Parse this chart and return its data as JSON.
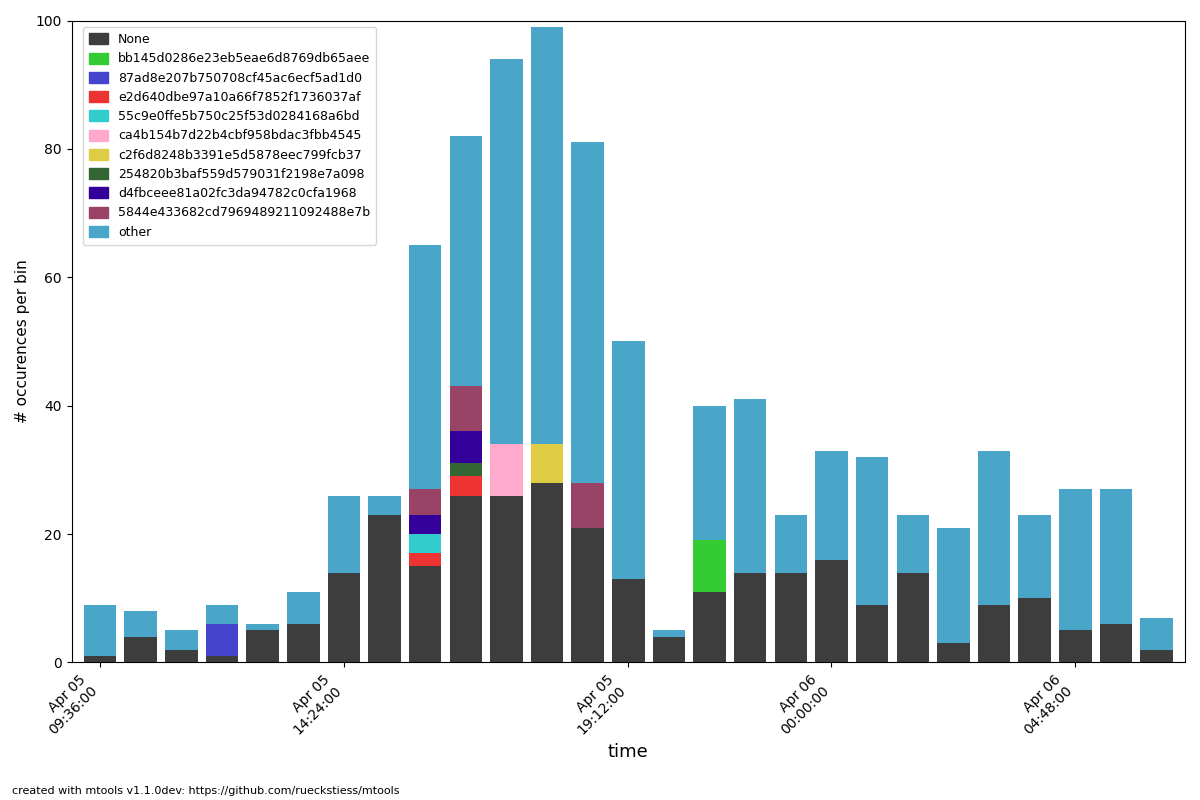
{
  "xlabel": "time",
  "ylabel": "# occurences per bin",
  "ylim": [
    0,
    100
  ],
  "yticks": [
    0,
    20,
    40,
    60,
    80,
    100
  ],
  "footnote": "created with mtools v1.1.0dev: https://github.com/rueckstiess/mtools",
  "legend_labels": [
    "None",
    "bb145d0286e23eb5eae6d8769db65aee",
    "87ad8e207b750708cf45ac6ecf5ad1d0",
    "e2d640dbe97a10a66f7852f1736037af",
    "55c9e0ffe5b750c25f53d0284168a6bd",
    "ca4b154b7d22b4cbf958bdac3fbb4545",
    "c2f6d8248b3391e5d5878eec799fcb37",
    "254820b3baf559d579031f2198e7a098",
    "d4fbceee81a02fc3da94782c0cfa1968",
    "5844e433682cd7969489211092488e7b",
    "other"
  ],
  "legend_colors": [
    "#3d3d3d",
    "#33cc33",
    "#4444cc",
    "#ee3333",
    "#33cccc",
    "#ffaacc",
    "#ddcc44",
    "#336633",
    "#330099",
    "#994466",
    "#4aA6C8"
  ],
  "bar_width": 0.8,
  "xtick_labels": [
    "Apr 05\n09:36:00",
    "Apr 05\n14:24:00",
    "Apr 05\n19:12:00",
    "Apr 06\n00:00:00",
    "Apr 06\n04:48:00"
  ],
  "bars": [
    {
      "x": 0,
      "none": 1,
      "bb": 0,
      "ad": 0,
      "e2": 0,
      "c5": 0,
      "ca": 0,
      "c2": 0,
      "d2": 0,
      "d4": 0,
      "s8": 0,
      "other": 8
    },
    {
      "x": 1,
      "none": 4,
      "bb": 0,
      "ad": 0,
      "e2": 0,
      "c5": 0,
      "ca": 0,
      "c2": 0,
      "d2": 0,
      "d4": 0,
      "s8": 0,
      "other": 4
    },
    {
      "x": 2,
      "none": 2,
      "bb": 0,
      "ad": 0,
      "e2": 0,
      "c5": 0,
      "ca": 0,
      "c2": 0,
      "d2": 0,
      "d4": 0,
      "s8": 0,
      "other": 3
    },
    {
      "x": 3,
      "none": 1,
      "bb": 0,
      "ad": 5,
      "e2": 0,
      "c5": 0,
      "ca": 0,
      "c2": 0,
      "d2": 0,
      "d4": 0,
      "s8": 0,
      "other": 3
    },
    {
      "x": 4,
      "none": 5,
      "bb": 0,
      "ad": 0,
      "e2": 0,
      "c5": 0,
      "ca": 0,
      "c2": 0,
      "d2": 0,
      "d4": 0,
      "s8": 0,
      "other": 1
    },
    {
      "x": 5,
      "none": 6,
      "bb": 0,
      "ad": 0,
      "e2": 0,
      "c5": 0,
      "ca": 0,
      "c2": 0,
      "d2": 0,
      "d4": 0,
      "s8": 0,
      "other": 5
    },
    {
      "x": 6,
      "none": 14,
      "bb": 0,
      "ad": 0,
      "e2": 0,
      "c5": 0,
      "ca": 0,
      "c2": 0,
      "d2": 0,
      "d4": 0,
      "s8": 0,
      "other": 12
    },
    {
      "x": 7,
      "none": 23,
      "bb": 0,
      "ad": 0,
      "e2": 0,
      "c5": 0,
      "ca": 0,
      "c2": 0,
      "d2": 0,
      "d4": 0,
      "s8": 0,
      "other": 3
    },
    {
      "x": 8,
      "none": 15,
      "bb": 0,
      "ad": 0,
      "e2": 2,
      "c5": 3,
      "ca": 0,
      "c2": 0,
      "d2": 0,
      "d4": 3,
      "s8": 4,
      "other": 38
    },
    {
      "x": 9,
      "none": 26,
      "bb": 0,
      "ad": 0,
      "e2": 3,
      "c5": 0,
      "ca": 0,
      "c2": 0,
      "d2": 2,
      "d4": 5,
      "s8": 7,
      "other": 39
    },
    {
      "x": 10,
      "none": 26,
      "bb": 0,
      "ad": 0,
      "e2": 0,
      "c5": 0,
      "ca": 8,
      "c2": 0,
      "d2": 0,
      "d4": 0,
      "s8": 0,
      "other": 60
    },
    {
      "x": 11,
      "none": 28,
      "bb": 0,
      "ad": 0,
      "e2": 0,
      "c5": 0,
      "ca": 0,
      "c2": 6,
      "d2": 0,
      "d4": 0,
      "s8": 0,
      "other": 65
    },
    {
      "x": 12,
      "none": 21,
      "bb": 0,
      "ad": 0,
      "e2": 0,
      "c5": 0,
      "ca": 0,
      "c2": 0,
      "d2": 0,
      "d4": 0,
      "s8": 7,
      "other": 53
    },
    {
      "x": 13,
      "none": 13,
      "bb": 0,
      "ad": 0,
      "e2": 0,
      "c5": 0,
      "ca": 0,
      "c2": 0,
      "d2": 0,
      "d4": 0,
      "s8": 0,
      "other": 37
    },
    {
      "x": 14,
      "none": 4,
      "bb": 0,
      "ad": 0,
      "e2": 0,
      "c5": 0,
      "ca": 0,
      "c2": 0,
      "d2": 0,
      "d4": 0,
      "s8": 0,
      "other": 1
    },
    {
      "x": 15,
      "none": 11,
      "bb": 8,
      "ad": 0,
      "e2": 0,
      "c5": 0,
      "ca": 0,
      "c2": 0,
      "d2": 0,
      "d4": 0,
      "s8": 0,
      "other": 21
    },
    {
      "x": 16,
      "none": 14,
      "bb": 0,
      "ad": 0,
      "e2": 0,
      "c5": 0,
      "ca": 0,
      "c2": 0,
      "d2": 0,
      "d4": 0,
      "s8": 0,
      "other": 27
    },
    {
      "x": 17,
      "none": 14,
      "bb": 0,
      "ad": 0,
      "e2": 0,
      "c5": 0,
      "ca": 0,
      "c2": 0,
      "d2": 0,
      "d4": 0,
      "s8": 0,
      "other": 9
    },
    {
      "x": 18,
      "none": 16,
      "bb": 0,
      "ad": 0,
      "e2": 0,
      "c5": 0,
      "ca": 0,
      "c2": 0,
      "d2": 0,
      "d4": 0,
      "s8": 0,
      "other": 17
    },
    {
      "x": 19,
      "none": 9,
      "bb": 0,
      "ad": 0,
      "e2": 0,
      "c5": 0,
      "ca": 0,
      "c2": 0,
      "d2": 0,
      "d4": 0,
      "s8": 0,
      "other": 23
    },
    {
      "x": 20,
      "none": 14,
      "bb": 0,
      "ad": 0,
      "e2": 0,
      "c5": 0,
      "ca": 0,
      "c2": 0,
      "d2": 0,
      "d4": 0,
      "s8": 0,
      "other": 9
    },
    {
      "x": 21,
      "none": 3,
      "bb": 0,
      "ad": 0,
      "e2": 0,
      "c5": 0,
      "ca": 0,
      "c2": 0,
      "d2": 0,
      "d4": 0,
      "s8": 0,
      "other": 18
    },
    {
      "x": 22,
      "none": 9,
      "bb": 0,
      "ad": 0,
      "e2": 0,
      "c5": 0,
      "ca": 0,
      "c2": 0,
      "d2": 0,
      "d4": 0,
      "s8": 0,
      "other": 24
    },
    {
      "x": 23,
      "none": 10,
      "bb": 0,
      "ad": 0,
      "e2": 0,
      "c5": 0,
      "ca": 0,
      "c2": 0,
      "d2": 0,
      "d4": 0,
      "s8": 0,
      "other": 13
    },
    {
      "x": 24,
      "none": 5,
      "bb": 0,
      "ad": 0,
      "e2": 0,
      "c5": 0,
      "ca": 0,
      "c2": 0,
      "d2": 0,
      "d4": 0,
      "s8": 0,
      "other": 22
    },
    {
      "x": 25,
      "none": 6,
      "bb": 0,
      "ad": 0,
      "e2": 0,
      "c5": 0,
      "ca": 0,
      "c2": 0,
      "d2": 0,
      "d4": 0,
      "s8": 0,
      "other": 21
    },
    {
      "x": 26,
      "none": 2,
      "bb": 0,
      "ad": 0,
      "e2": 0,
      "c5": 0,
      "ca": 0,
      "c2": 0,
      "d2": 0,
      "d4": 0,
      "s8": 0,
      "other": 5
    }
  ],
  "xtick_map": {
    "0": "Apr 05\n09:36:00",
    "6": "Apr 05\n14:24:00",
    "13": "Apr 05\n19:12:00",
    "18": "Apr 06\n00:00:00",
    "24": "Apr 06\n04:48:00"
  }
}
